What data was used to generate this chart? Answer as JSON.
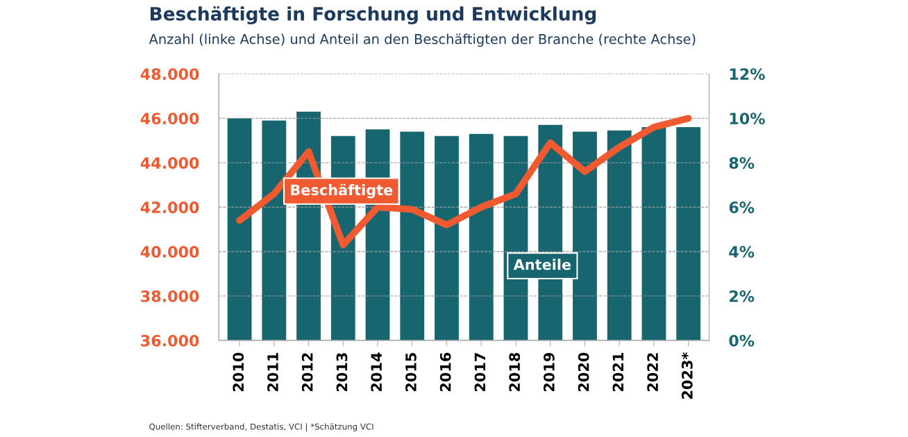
{
  "chart_data": {
    "type": "bar",
    "title": "Beschäftigte in Forschung und Entwicklung",
    "subtitle": "Anzahl (linke Achse) und Anteil an den Beschäftigten der Branche (rechte Achse)",
    "categories": [
      "2010",
      "2011",
      "2012",
      "2013",
      "2014",
      "2015",
      "2016",
      "2017",
      "2018",
      "2019",
      "2020",
      "2021",
      "2022",
      "2023*"
    ],
    "series": [
      {
        "name": "Anteile",
        "axis": "y2",
        "color": "#17666f",
        "values": [
          10.0,
          9.9,
          10.3,
          9.2,
          9.5,
          9.4,
          9.2,
          9.3,
          9.2,
          9.7,
          9.4,
          9.45,
          9.6,
          9.6
        ]
      },
      {
        "name": "Beschäftigte",
        "type": "line",
        "color": "#f05a30",
        "values": [
          41400,
          42600,
          44500,
          40300,
          42000,
          41900,
          41200,
          42000,
          42600,
          44900,
          43600,
          44700,
          45600,
          46000
        ]
      }
    ],
    "ylim": [
      36000,
      48000
    ],
    "yticks": [
      {
        "value": 36000,
        "label": "36.000"
      },
      {
        "value": 38000,
        "label": "38.000"
      },
      {
        "value": 40000,
        "label": "40.000"
      },
      {
        "value": 42000,
        "label": "42.000"
      },
      {
        "value": 44000,
        "label": "44.000"
      },
      {
        "value": 46000,
        "label": "46.000"
      },
      {
        "value": 48000,
        "label": "48.000"
      }
    ],
    "y2lim": [
      0,
      12
    ],
    "y2ticks": [
      {
        "value": 0,
        "label": "0%"
      },
      {
        "value": 2,
        "label": "2%"
      },
      {
        "value": 4,
        "label": "4%"
      },
      {
        "value": 6,
        "label": "6%"
      },
      {
        "value": 8,
        "label": "8%"
      },
      {
        "value": 10,
        "label": "10%"
      },
      {
        "value": 12,
        "label": "12%"
      }
    ],
    "grid": "y",
    "marker": "none",
    "line_style": "solid",
    "annotations": [
      "Quellen: Stifterverband, Destatis, VCI | *Schätzung VCI"
    ]
  }
}
